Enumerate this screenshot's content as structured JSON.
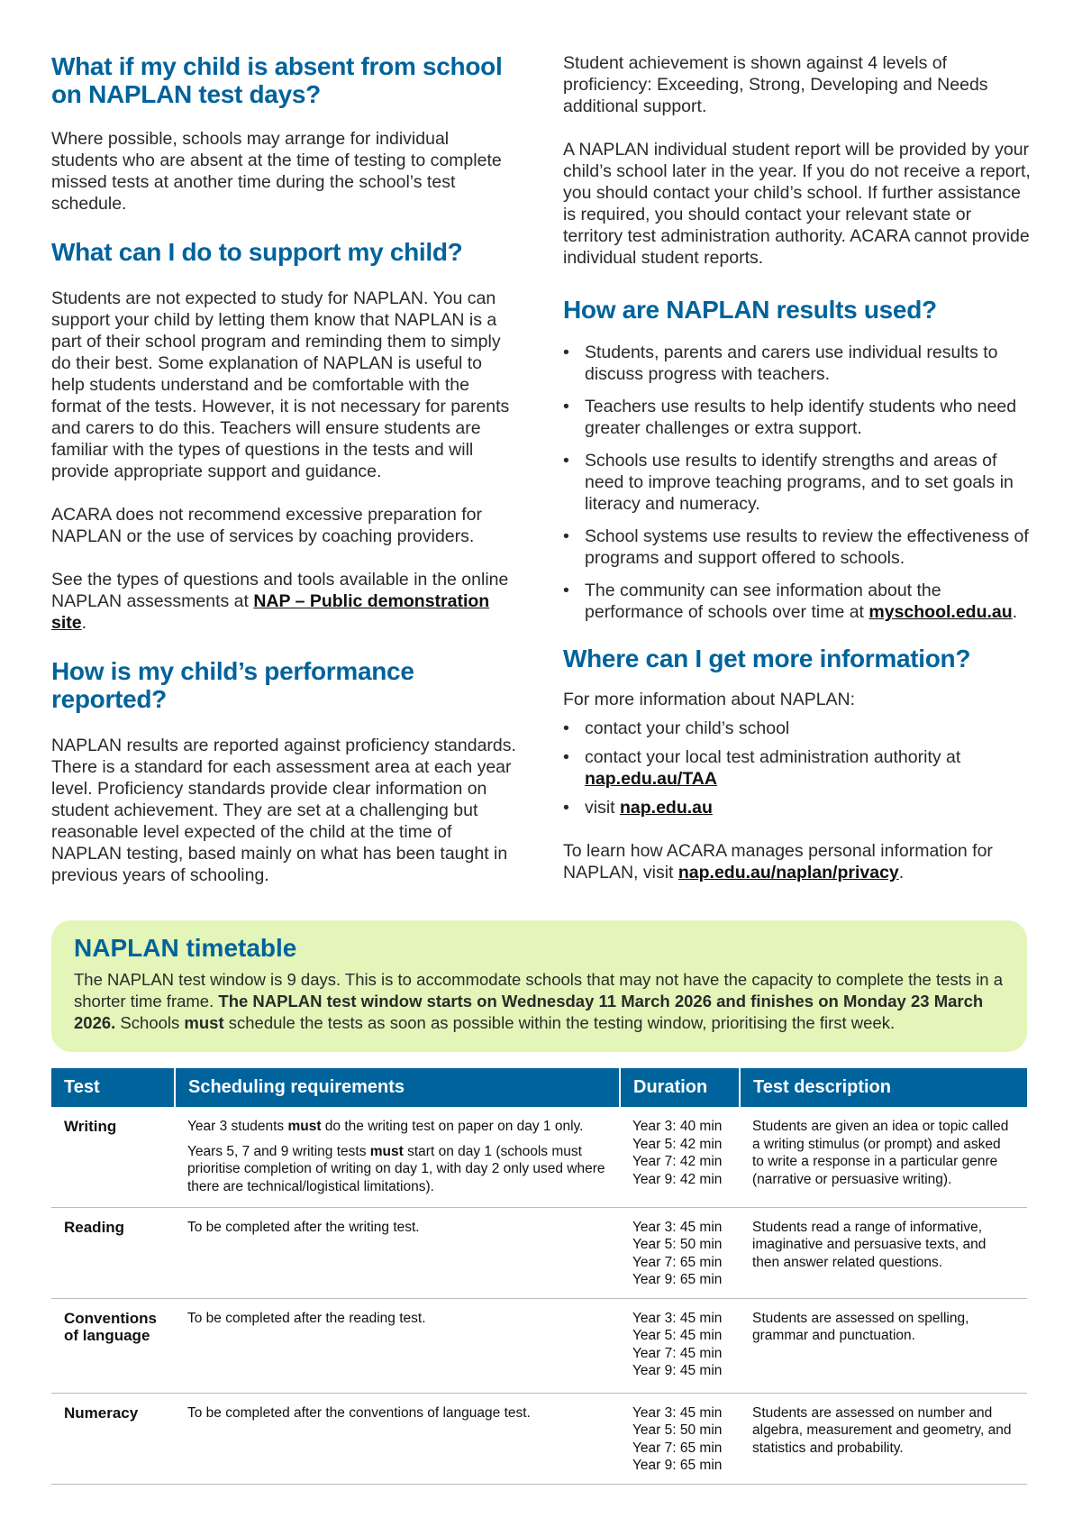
{
  "left": {
    "absent": {
      "heading": "What if my child is absent from school on NAPLAN test days?",
      "body": "Where possible, schools may arrange for individual students who are absent at the time of testing to complete missed tests at another time during the school’s test schedule."
    },
    "support": {
      "heading": "What can I do to support my child?",
      "p1": "Students are not expected to study for NAPLAN. You can support your child by letting them know that NAPLAN is a part of their school program and reminding them to simply do their best. Some explanation of NAPLAN is useful to help students understand and be comfortable with the format of the tests. However, it is not necessary for parents and carers to do this. Teachers will ensure students are familiar with the types of questions in the tests and will provide appropriate support and guidance.",
      "p2": "ACARA does not recommend excessive preparation for NAPLAN or the use of services by coaching providers.",
      "p3_text": "See the types of questions and tools available in the online NAPLAN assessments at ",
      "p3_link": "NAP – Public demonstration site",
      "p3_end": "."
    },
    "performance": {
      "heading": "How is my child’s performance reported?",
      "body": "NAPLAN results are reported against proficiency standards. There is a standard for each assessment area at each year level. Proficiency standards provide clear information on student achievement. They are set at a challenging but reasonable level expected of the child at the time of NAPLAN testing, based mainly on what has been taught in previous years of schooling."
    }
  },
  "right": {
    "p1": "Student achievement is shown against 4 levels of proficiency: Exceeding, Strong, Developing and Needs additional support.",
    "p2": "A NAPLAN individual student report will be provided by your child’s school later in the year. If you do not receive a report, you should contact your child’s school. If further assistance is required, you should contact your relevant state or territory test administration authority. ACARA cannot provide individual student reports.",
    "results": {
      "heading": "How are NAPLAN results used?",
      "items": [
        "Students, parents and carers use individual results to discuss progress with teachers.",
        "Teachers use results to help identify students who need greater challenges or extra support.",
        "Schools use results to identify strengths and areas of need to improve teaching programs, and to set goals in literacy and numeracy.",
        "School systems use results to review the effectiveness of programs and support offered to schools."
      ],
      "last_item_text": "The community can see information about the performance of schools over time at ",
      "last_item_link": "myschool.edu.au",
      "last_item_end": "."
    },
    "info": {
      "heading": "Where can I get more information?",
      "intro": "For more information about NAPLAN:",
      "item1": "contact your child’s school",
      "item2_text": "contact your local test administration authority at ",
      "item2_link": "nap.edu.au/TAA",
      "item3_text": "visit ",
      "item3_link": "nap.edu.au",
      "privacy_text": "To learn how ACARA manages personal information for NAPLAN, visit ",
      "privacy_link": "nap.edu.au/naplan/privacy",
      "privacy_end": "."
    },
    "bullet": "•"
  },
  "timetable": {
    "heading": "NAPLAN timetable",
    "t1": "The NAPLAN test window is 9 days. This is to accommodate schools that may not have the capacity to complete the tests in a shorter time frame. ",
    "b1": "The NAPLAN test window starts on Wednesday 11 March 2026 and finishes on Monday 23 March 2026.",
    "t2": " Schools ",
    "b2": "must",
    "t3": " schedule the tests as soon as possible within the testing window, prioritising the first week.",
    "bg_color": "#e3f5b8"
  },
  "table": {
    "headers": [
      "Test",
      "Scheduling requirements",
      "Duration",
      "Test description"
    ],
    "header_color": "#00639c",
    "rows": [
      {
        "test": "Writing",
        "req1_a": "Year 3 students ",
        "req1_b": "must",
        "req1_c": " do the writing test on paper on day 1 only.",
        "req2_a": "Years 5, 7 and 9 writing tests ",
        "req2_b": "must",
        "req2_c": " start on day 1 (schools must prioritise completion of writing on day 1, with day 2 only used where there are technical/logistical limitations).",
        "duration": [
          "Year 3: 40 min",
          "Year 5: 42 min",
          "Year 7: 42 min",
          "Year 9: 42 min"
        ],
        "description": "Students are given an idea or topic called a writing stimulus (or prompt) and asked to write a response in a particular genre (narrative or persuasive writing)."
      },
      {
        "test": "Reading",
        "req": "To be completed after the writing test.",
        "duration": [
          "Year 3: 45 min",
          "Year 5: 50 min",
          "Year 7: 65 min",
          "Year 9: 65 min"
        ],
        "description": "Students read a range of informative, imaginative and persuasive texts, and then answer related questions."
      },
      {
        "test": "Conventions of language",
        "req": "To be completed after the reading test.",
        "duration": [
          "Year 3: 45 min",
          "Year 5: 45 min",
          "Year 7: 45 min",
          "Year 9: 45 min"
        ],
        "description": "Students are assessed on spelling, grammar and punctuation."
      },
      {
        "test": "Numeracy",
        "req": "To be completed after the conventions of language test.",
        "duration": [
          "Year 3: 45 min",
          "Year 5: 50 min",
          "Year 7: 65 min",
          "Year 9: 65 min"
        ],
        "description": "Students are assessed on number and algebra, measurement and geometry, and statistics and probability."
      }
    ]
  }
}
